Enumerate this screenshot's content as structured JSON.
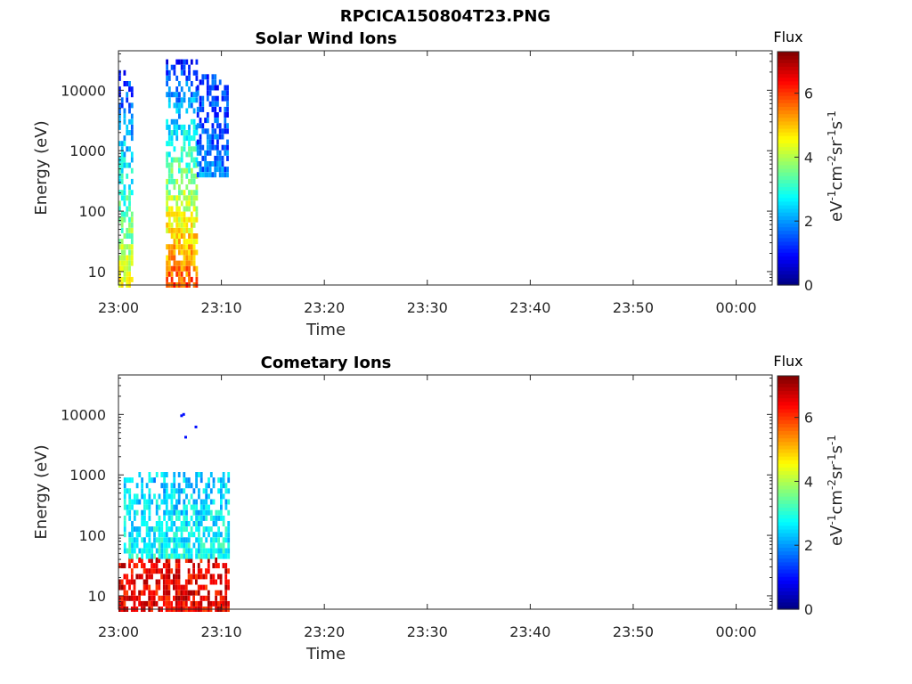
{
  "figure_title": "RPCICA150804T23.PNG",
  "colorbar": {
    "title": "Flux",
    "range": [
      0,
      7.3
    ],
    "ticks": [
      "0",
      "2",
      "4",
      "6"
    ],
    "ticks_values": [
      0,
      2,
      4,
      6
    ],
    "colormap": "jet",
    "unit_label": "eV-1cm-2sr-1s-1"
  },
  "chart_data": [
    {
      "type": "heatmap",
      "title": "Solar Wind Ions",
      "xlabel": "Time",
      "ylabel": "Energy (eV)",
      "x_ticks": [
        "23:00",
        "23:10",
        "23:20",
        "23:30",
        "23:40",
        "23:50",
        "00:00"
      ],
      "x_range_minutes": [
        0,
        63.5
      ],
      "y_ticks": [
        "10",
        "100",
        "1000",
        "10000"
      ],
      "y_scale": "log",
      "y_range": [
        6,
        45000
      ],
      "clusters": [
        {
          "t_start_min": 0.0,
          "t_end_min": 1.4,
          "e_min": 6,
          "e_max": 20000,
          "flux_low_energy": 4.5,
          "flux_high_energy": 1.2
        },
        {
          "t_start_min": 4.6,
          "t_end_min": 7.6,
          "e_min": 6,
          "e_max": 30000,
          "flux_low_energy": 5.8,
          "flux_high_energy": 1.2
        },
        {
          "t_start_min": 7.6,
          "t_end_min": 10.7,
          "e_min": 400,
          "e_max": 20000,
          "flux_low_energy": 1.8,
          "flux_high_energy": 1.2
        }
      ]
    },
    {
      "type": "heatmap",
      "title": "Cometary Ions",
      "xlabel": "Time",
      "ylabel": "Energy (eV)",
      "x_ticks": [
        "23:00",
        "23:10",
        "23:20",
        "23:30",
        "23:40",
        "23:50",
        "00:00"
      ],
      "x_range_minutes": [
        0,
        63.5
      ],
      "y_ticks": [
        "10",
        "100",
        "1000",
        "10000"
      ],
      "y_scale": "log",
      "y_range": [
        6,
        45000
      ],
      "clusters": [
        {
          "t_start_min": 0.0,
          "t_end_min": 10.7,
          "e_min": 6,
          "e_max": 45,
          "flux_low_energy": 6.5,
          "flux_high_energy": 6.5
        },
        {
          "t_start_min": 0.5,
          "t_end_min": 10.7,
          "e_min": 45,
          "e_max": 1100,
          "flux_low_energy": 2.8,
          "flux_high_energy": 2.3
        }
      ],
      "sparse_points": [
        {
          "t_min": 6.0,
          "energy": 9500,
          "flux": 1.0
        },
        {
          "t_min": 6.2,
          "energy": 10000,
          "flux": 1.0
        },
        {
          "t_min": 6.4,
          "energy": 4200,
          "flux": 1.0
        },
        {
          "t_min": 7.4,
          "energy": 6200,
          "flux": 1.0
        }
      ]
    }
  ]
}
